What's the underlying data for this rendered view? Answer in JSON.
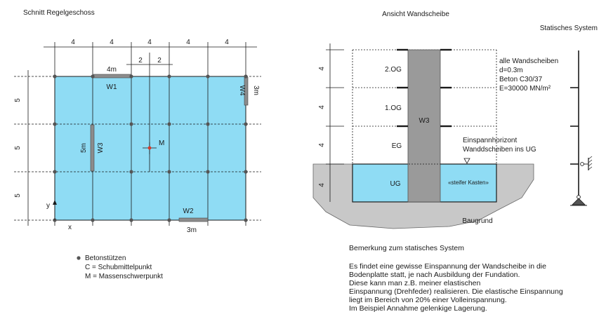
{
  "colors": {
    "slab_fill": "#8fdcf4",
    "wall_fill": "#8c8c8c",
    "ground_fill": "#c8c8c8",
    "core_fill": "#9a9a9a",
    "line": "#1a1a1a"
  },
  "plan": {
    "title": "Schnitt Regelgeschoss",
    "dims_top": [
      "4",
      "4",
      "4",
      "4",
      "4"
    ],
    "dims_top_sub": [
      "2",
      "2"
    ],
    "dims_left": [
      "5",
      "5",
      "5"
    ],
    "walls": {
      "w1": {
        "name": "W1",
        "length": "4m"
      },
      "w2": {
        "name": "W2",
        "length": "3m"
      },
      "w3": {
        "name": "W3",
        "length": "5m"
      },
      "w4": {
        "name": "W4",
        "length": "3m"
      }
    },
    "mass_center": "M",
    "axis_x": "x",
    "axis_y": "y",
    "legend": [
      "Betonstützen",
      "C = Schubmittelpunkt",
      "M = Massenschwerpunkt"
    ]
  },
  "elevation": {
    "title": "Ansicht Wandscheibe",
    "dims_left": [
      "4",
      "4",
      "4",
      "4"
    ],
    "floors": [
      "2.OG",
      "1.OG",
      "EG",
      "UG"
    ],
    "wall_label": "W3",
    "box_label": "«steifer Kasten»",
    "props": [
      "alle Wandscheiben",
      "d=0.3m",
      "Beton C30/37",
      "E=30000 MN/m²"
    ],
    "fixity": [
      "Einspannhorizont",
      "Wanddscheiben ins UG"
    ],
    "ground": "Baugrund"
  },
  "system": {
    "title": "Statisches System"
  },
  "remark": {
    "title": "Bemerkung zum statisches System",
    "lines": [
      "Es findet eine gewisse Einspannung der Wandscheibe in die",
      "Bodenplatte statt, je nach Ausbildung der Fundation.",
      "Diese kann man z.B. meiner elastischen",
      "Einspannung (Drehfeder) realisieren. Die elastische Einspannung",
      "liegt im Bereich von 20% einer Volleinspannung.",
      "Im Beispiel Annahme gelenkige Lagerung."
    ]
  }
}
